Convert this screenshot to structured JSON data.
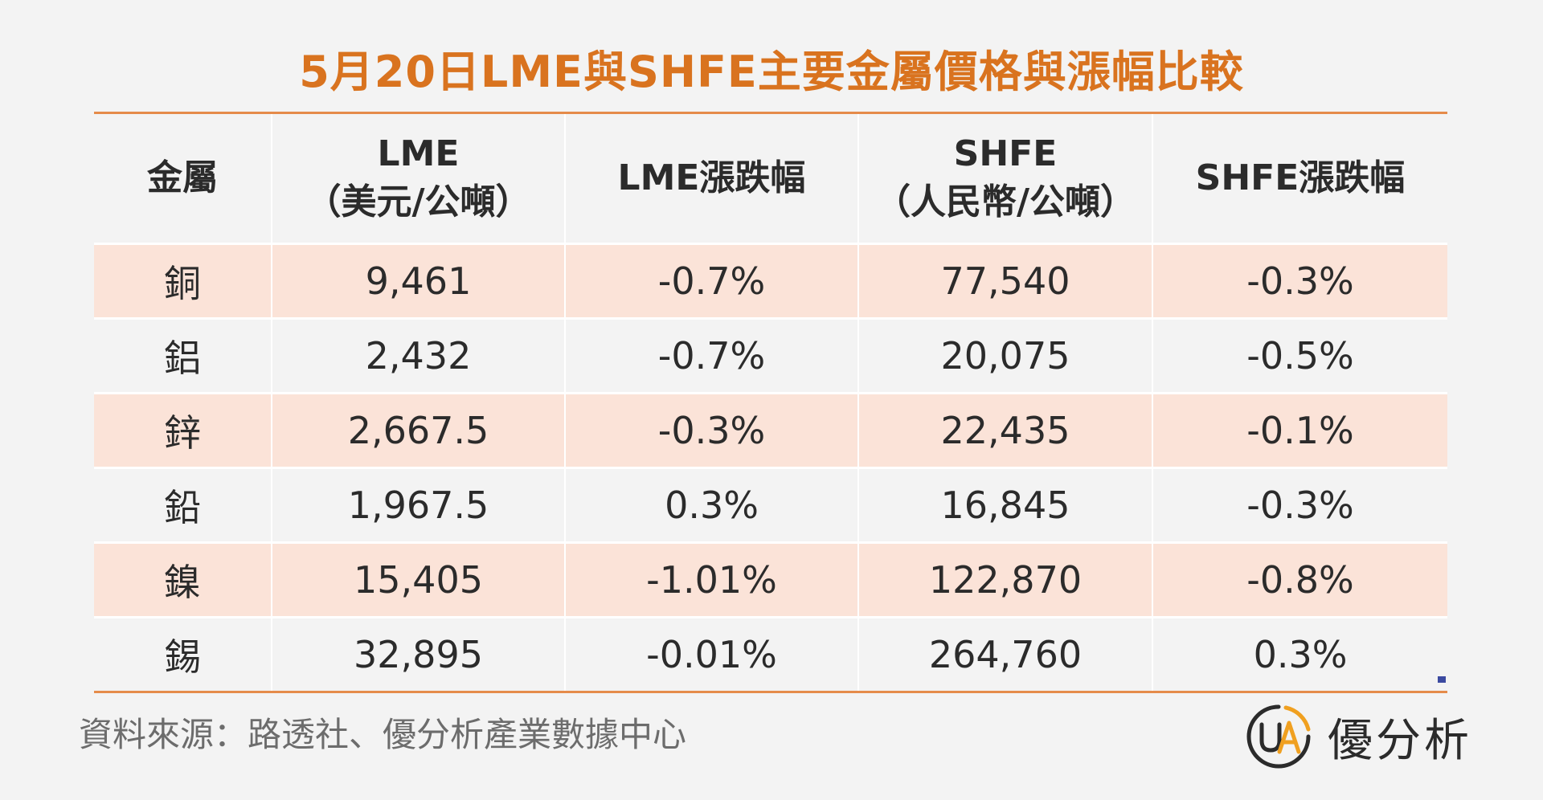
{
  "title": "5月20日LME與SHFE主要金屬價格與漲幅比較",
  "table": {
    "headers": [
      {
        "line1": "金屬",
        "line2": ""
      },
      {
        "line1": "LME",
        "line2": "（美元/公噸）"
      },
      {
        "line1": "LME漲跌幅",
        "line2": ""
      },
      {
        "line1": "SHFE",
        "line2": "（人民幣/公噸）"
      },
      {
        "line1": "SHFE漲跌幅",
        "line2": ""
      }
    ],
    "rows": [
      [
        "銅",
        "9,461",
        "-0.7%",
        "77,540",
        "-0.3%"
      ],
      [
        "鋁",
        "2,432",
        "-0.7%",
        "20,075",
        "-0.5%"
      ],
      [
        "鋅",
        "2,667.5",
        "-0.3%",
        "22,435",
        "-0.1%"
      ],
      [
        "鉛",
        "1,967.5",
        "0.3%",
        "16,845",
        "-0.3%"
      ],
      [
        "鎳",
        "15,405",
        "-1.01%",
        "122,870",
        "-0.8%"
      ],
      [
        "錫",
        "32,895",
        "-0.01%",
        "264,760",
        "0.3%"
      ]
    ]
  },
  "source": "資料來源：路透社、優分析產業數據中心",
  "logo": {
    "text": "優分析",
    "mark_letters": "UA"
  },
  "colors": {
    "title": "#d9731f",
    "accent_line": "#e58b4a",
    "row_highlight": "#fbe3d8",
    "background": "#f3f3f3",
    "logo_ring_dark": "#2b2b2b",
    "logo_ring_orange": "#f0a020"
  }
}
